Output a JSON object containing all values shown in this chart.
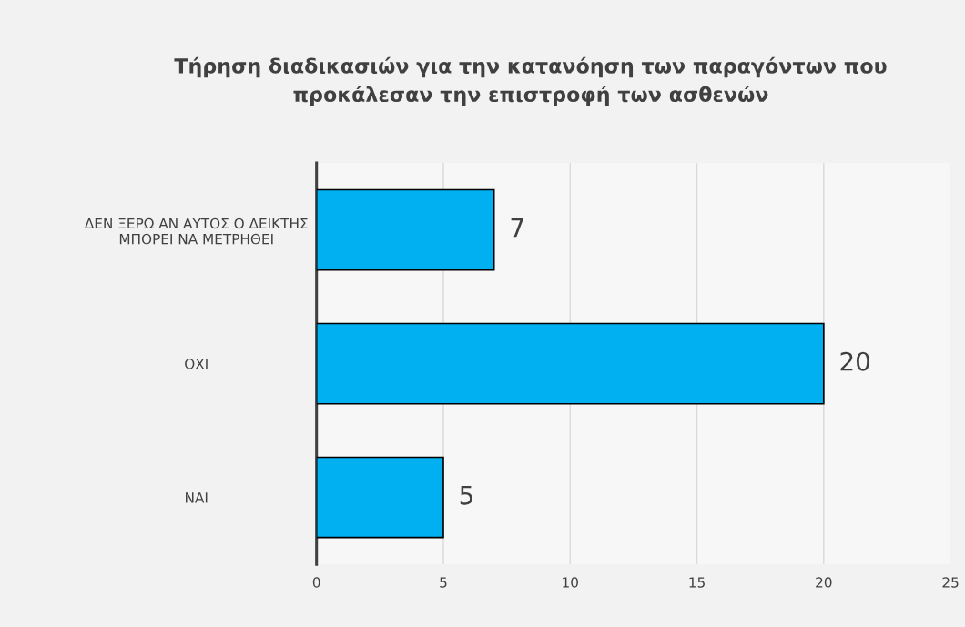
{
  "chart_data": {
    "type": "bar",
    "orientation": "horizontal",
    "title": "Τήρηση διαδικασιών για την κατανόηση των παραγόντων που\nπροκάλεσαν την επιστροφή των ασθενών",
    "categories": [
      "ΔΕΝ ΞΕΡΩ ΑΝ ΑΥΤΟΣ Ο ΔΕΙΚΤΗΣ\nΜΠΟΡΕΙ ΝΑ ΜΕΤΡΗΘΕΙ",
      "ΟΧΙ",
      "ΝΑΙ"
    ],
    "values": [
      7,
      20,
      5
    ],
    "color": "#00b0f0",
    "xlim": [
      0,
      25
    ],
    "xticks": [
      0,
      5,
      10,
      15,
      20,
      25
    ],
    "grid": "x",
    "data_labels": true,
    "legend": false
  }
}
